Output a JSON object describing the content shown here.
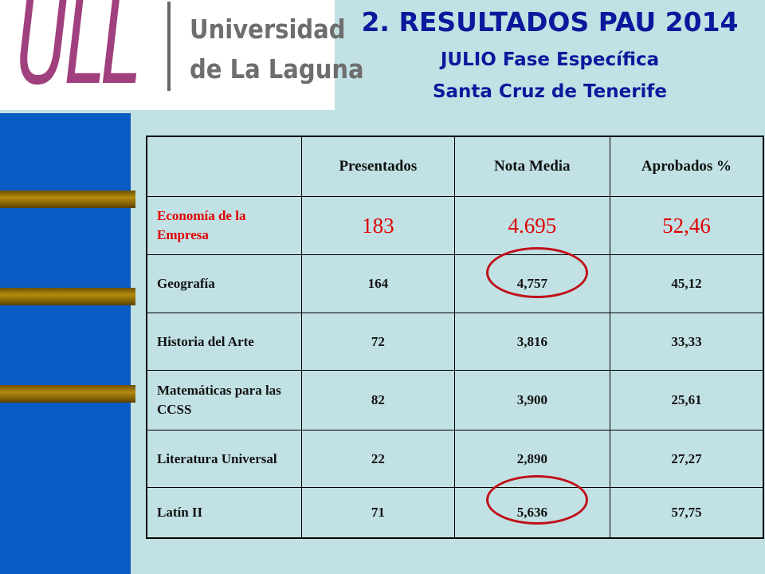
{
  "logo": {
    "mark": "ULL",
    "text": "Universidad\nde La Laguna"
  },
  "title": {
    "line1": "2. RESULTADOS PAU 2014",
    "line2": "JULIO Fase Específica",
    "line3": "Santa Cruz de Tenerife"
  },
  "table": {
    "headers": [
      "",
      "Presentados",
      "Nota Media",
      "Aprobados %"
    ],
    "rows": [
      {
        "subject": "Economía de la Empresa",
        "presentados": "183",
        "nota": "4.695",
        "aprobados": "52,46"
      },
      {
        "subject": "Geografía",
        "presentados": "164",
        "nota": "4,757",
        "aprobados": "45,12"
      },
      {
        "subject": "Historia del Arte",
        "presentados": "72",
        "nota": "3,816",
        "aprobados": "33,33"
      },
      {
        "subject": "Matemáticas para las CCSS",
        "presentados": "82",
        "nota": "3,900",
        "aprobados": "25,61"
      },
      {
        "subject": "Literatura Universal",
        "presentados": "22",
        "nota": "2,890",
        "aprobados": "27,27"
      },
      {
        "subject": "Latín II",
        "presentados": "71",
        "nota": "5,636",
        "aprobados": "57,75"
      }
    ]
  },
  "colors": {
    "background": "#c1e1e4",
    "title": "#0a1a9c",
    "highlight_row": "#e00000",
    "circle": "#c0101a",
    "side_bar": "#0a5bc4"
  }
}
